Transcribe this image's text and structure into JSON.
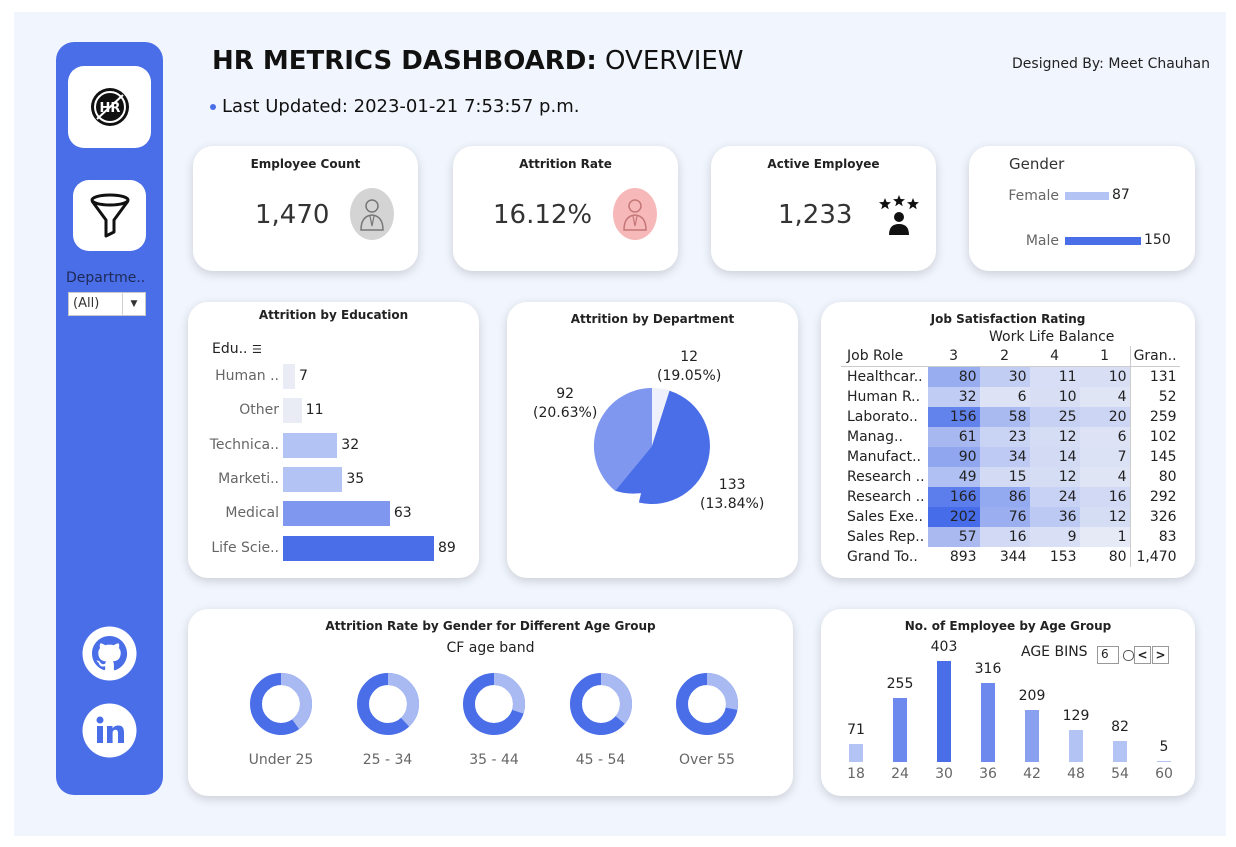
{
  "header": {
    "title_bold": "HR METRICS DASHBOARD:",
    "title_light": " OVERVIEW",
    "designed_by": "Designed By: Meet Chauhan",
    "last_updated": "Last Updated: 2023-01-21 7:53:57 p.m."
  },
  "sidebar": {
    "logo_icon": "hr-logo-icon",
    "filter_icon": "funnel-icon",
    "department_label": "Departme..",
    "department_value": "(All)",
    "social": [
      "github-icon",
      "linkedin-icon"
    ],
    "color": "#4a6ee8"
  },
  "kpis": {
    "employee_count": {
      "label": "Employee Count",
      "value": "1,470",
      "icon": "employee-icon"
    },
    "attrition_rate": {
      "label": "Attrition Rate",
      "value": "16.12%",
      "icon": "employee-icon"
    },
    "active_employee": {
      "label": "Active Employee",
      "value": "1,233",
      "icon": "star-employee-icon"
    },
    "gender": {
      "label": "Gender",
      "female_label": "Female",
      "female_value": "87",
      "male_label": "Male",
      "male_value": "150"
    }
  },
  "education": {
    "title": "Attrition by Education",
    "header": "Edu..",
    "rows": [
      {
        "label": "Human ..",
        "value": 7
      },
      {
        "label": "Other",
        "value": 11
      },
      {
        "label": "Technica..",
        "value": 32
      },
      {
        "label": "Marketi..",
        "value": 35
      },
      {
        "label": "Medical",
        "value": 63
      },
      {
        "label": "Life Scie..",
        "value": 89
      }
    ]
  },
  "department": {
    "title": "Attrition by Department",
    "labels": [
      {
        "count": "12",
        "pct": "(19.05%)"
      },
      {
        "count": "92",
        "pct": "(20.63%)"
      },
      {
        "count": "133",
        "pct": "(13.84%)"
      }
    ]
  },
  "job_satisfaction": {
    "title": "Job Satisfaction Rating",
    "subtitle": "Work Life Balance",
    "columns": [
      "Job Role",
      "3",
      "2",
      "4",
      "1",
      "Gran.."
    ],
    "rows": [
      {
        "role": "Healthcar..",
        "v": [
          "80",
          "30",
          "11",
          "10"
        ],
        "total": "131"
      },
      {
        "role": "Human R..",
        "v": [
          "32",
          "6",
          "10",
          "4"
        ],
        "total": "52"
      },
      {
        "role": "Laborato..",
        "v": [
          "156",
          "58",
          "25",
          "20"
        ],
        "total": "259"
      },
      {
        "role": "Manag..",
        "v": [
          "61",
          "23",
          "12",
          "6"
        ],
        "total": "102"
      },
      {
        "role": "Manufact..",
        "v": [
          "90",
          "34",
          "14",
          "7"
        ],
        "total": "145"
      },
      {
        "role": "Research ..",
        "v": [
          "49",
          "15",
          "12",
          "4"
        ],
        "total": "80"
      },
      {
        "role": "Research ..",
        "v": [
          "166",
          "86",
          "24",
          "16"
        ],
        "total": "292"
      },
      {
        "role": "Sales Exe..",
        "v": [
          "202",
          "76",
          "36",
          "12"
        ],
        "total": "326"
      },
      {
        "role": "Sales Rep..",
        "v": [
          "57",
          "16",
          "9",
          "1"
        ],
        "total": "83"
      }
    ],
    "grand": {
      "role": "Grand To..",
      "v": [
        "893",
        "344",
        "153",
        "80"
      ],
      "total": "1,470"
    }
  },
  "age_gender": {
    "title": "Attrition Rate by Gender for Different Age Group",
    "subtitle": "CF age band",
    "groups": [
      {
        "label": "Under 25",
        "share": 0.4
      },
      {
        "label": "25 - 34",
        "share": 0.38
      },
      {
        "label": "35 - 44",
        "share": 0.3
      },
      {
        "label": "45 - 54",
        "share": 0.36
      },
      {
        "label": "Over 55",
        "share": 0.28
      }
    ]
  },
  "age_groups": {
    "title": "No. of Employee by Age Group",
    "bins_label": "AGE BINS",
    "bins_value": "6",
    "bars": [
      {
        "age": "18",
        "count": 71
      },
      {
        "age": "24",
        "count": 255
      },
      {
        "age": "30",
        "count": 403
      },
      {
        "age": "36",
        "count": 316
      },
      {
        "age": "42",
        "count": 209
      },
      {
        "age": "48",
        "count": 129
      },
      {
        "age": "54",
        "count": 82
      },
      {
        "age": "60",
        "count": 5
      }
    ]
  }
}
